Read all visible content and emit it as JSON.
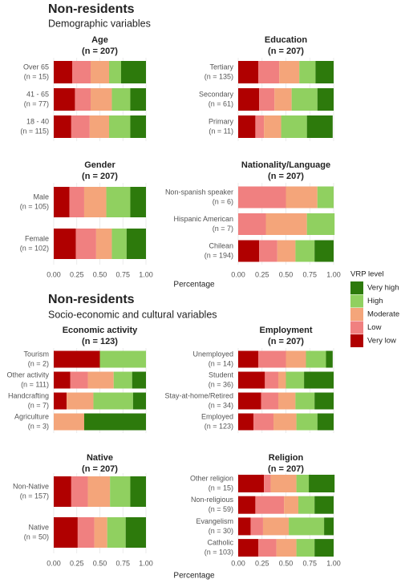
{
  "sections": [
    {
      "title": "Non-residents",
      "subtitle": "Demographic variables",
      "xlabel": "Percentage"
    },
    {
      "title": "Non-residents",
      "subtitle": "Socio-economic and cultural variables",
      "xlabel": "Percentage"
    }
  ],
  "legend_title": "VRP level",
  "chart_data": [
    {
      "type": "stacked_bar",
      "title": "Age",
      "subtitle": "(n = 207)",
      "categories": [
        "Over 65",
        "41 - 65",
        "18 - 40"
      ],
      "category_notes": [
        "(n = 15)",
        "(n = 77)",
        "(n = 115)"
      ],
      "xlim": [
        0,
        1
      ],
      "series": [
        {
          "name": "Very low",
          "color": "#b00000",
          "values": [
            0.2,
            0.23,
            0.19
          ]
        },
        {
          "name": "Low",
          "color": "#f08080",
          "values": [
            0.2,
            0.17,
            0.2
          ]
        },
        {
          "name": "Moderate",
          "color": "#f4a57a",
          "values": [
            0.2,
            0.23,
            0.21
          ]
        },
        {
          "name": "High",
          "color": "#90d060",
          "values": [
            0.13,
            0.2,
            0.23
          ]
        },
        {
          "name": "Very high",
          "color": "#2d7a0c",
          "values": [
            0.27,
            0.17,
            0.17
          ]
        }
      ]
    },
    {
      "type": "stacked_bar",
      "title": "Education",
      "subtitle": "(n = 207)",
      "categories": [
        "Tertiary",
        "Secondary",
        "Primary"
      ],
      "category_notes": [
        "(n = 135)",
        "(n = 61)",
        "(n = 11)"
      ],
      "xlim": [
        0,
        1
      ],
      "series": [
        {
          "name": "Very low",
          "color": "#b00000",
          "values": [
            0.21,
            0.22,
            0.18
          ]
        },
        {
          "name": "Low",
          "color": "#f08080",
          "values": [
            0.22,
            0.16,
            0.09
          ]
        },
        {
          "name": "Moderate",
          "color": "#f4a57a",
          "values": [
            0.21,
            0.18,
            0.18
          ]
        },
        {
          "name": "High",
          "color": "#90d060",
          "values": [
            0.17,
            0.27,
            0.27
          ]
        },
        {
          "name": "Very high",
          "color": "#2d7a0c",
          "values": [
            0.19,
            0.17,
            0.27
          ]
        }
      ]
    },
    {
      "type": "stacked_bar",
      "title": "Gender",
      "subtitle": "(n = 207)",
      "categories": [
        "Male",
        "Female"
      ],
      "category_notes": [
        "(n = 105)",
        "(n = 102)"
      ],
      "xlim": [
        0,
        1
      ],
      "xticks": [
        {
          "value": 0,
          "label": "0.00"
        },
        {
          "value": 0.25,
          "label": "0.25"
        },
        {
          "value": 0.5,
          "label": "0.50"
        },
        {
          "value": 0.75,
          "label": "0.75"
        },
        {
          "value": 1,
          "label": "1.00"
        }
      ],
      "series": [
        {
          "name": "Very low",
          "color": "#b00000",
          "values": [
            0.17,
            0.24
          ]
        },
        {
          "name": "Low",
          "color": "#f08080",
          "values": [
            0.16,
            0.22
          ]
        },
        {
          "name": "Moderate",
          "color": "#f4a57a",
          "values": [
            0.24,
            0.17
          ]
        },
        {
          "name": "High",
          "color": "#90d060",
          "values": [
            0.26,
            0.16
          ]
        },
        {
          "name": "Very high",
          "color": "#2d7a0c",
          "values": [
            0.17,
            0.21
          ]
        }
      ]
    },
    {
      "type": "stacked_bar",
      "title": "Nationality/Language",
      "subtitle": "(n = 207)",
      "categories": [
        "Non-spanish speaker",
        "Hispanic American",
        "Chilean"
      ],
      "category_notes": [
        "(n = 6)",
        "(n = 7)",
        "(n = 194)"
      ],
      "xlim": [
        0,
        1
      ],
      "xticks": [
        {
          "value": 0,
          "label": "0.00"
        },
        {
          "value": 0.25,
          "label": "0.25"
        },
        {
          "value": 0.5,
          "label": "0.50"
        },
        {
          "value": 0.75,
          "label": "0.75"
        },
        {
          "value": 1,
          "label": "1.00"
        }
      ],
      "series": [
        {
          "name": "Very low",
          "color": "#b00000",
          "values": [
            0,
            0,
            0.22
          ]
        },
        {
          "name": "Low",
          "color": "#f08080",
          "values": [
            0.5,
            0.29,
            0.19
          ]
        },
        {
          "name": "Moderate",
          "color": "#f4a57a",
          "values": [
            0.33,
            0.43,
            0.19
          ]
        },
        {
          "name": "High",
          "color": "#90d060",
          "values": [
            0.17,
            0.29,
            0.2
          ]
        },
        {
          "name": "Very high",
          "color": "#2d7a0c",
          "values": [
            0,
            0,
            0.2
          ]
        }
      ]
    },
    {
      "type": "stacked_bar",
      "title": "Economic activity",
      "subtitle": "(n = 123)",
      "categories": [
        "Tourism",
        "Other activity",
        "Handcrafting",
        "Agriculture"
      ],
      "category_notes": [
        "(n = 2)",
        "(n = 111)",
        "(n = 7)",
        "(n = 3)"
      ],
      "xlim": [
        0,
        1
      ],
      "series": [
        {
          "name": "Very low",
          "color": "#b00000",
          "values": [
            0.5,
            0.18,
            0.14,
            0
          ]
        },
        {
          "name": "Low",
          "color": "#f08080",
          "values": [
            0,
            0.19,
            0,
            0
          ]
        },
        {
          "name": "Moderate",
          "color": "#f4a57a",
          "values": [
            0,
            0.28,
            0.29,
            0.33
          ]
        },
        {
          "name": "High",
          "color": "#90d060",
          "values": [
            0.5,
            0.2,
            0.43,
            0
          ]
        },
        {
          "name": "Very high",
          "color": "#2d7a0c",
          "values": [
            0,
            0.15,
            0.14,
            0.67
          ]
        }
      ]
    },
    {
      "type": "stacked_bar",
      "title": "Employment",
      "subtitle": "(n = 207)",
      "categories": [
        "Unemployed",
        "Student",
        "Stay-at-home/Retired",
        "Employed"
      ],
      "category_notes": [
        "(n = 14)",
        "(n = 36)",
        "(n = 34)",
        "(n = 123)"
      ],
      "xlim": [
        0,
        1
      ],
      "series": [
        {
          "name": "Very low",
          "color": "#b00000",
          "values": [
            0.21,
            0.28,
            0.24,
            0.16
          ]
        },
        {
          "name": "Low",
          "color": "#f08080",
          "values": [
            0.29,
            0.14,
            0.18,
            0.21
          ]
        },
        {
          "name": "Moderate",
          "color": "#f4a57a",
          "values": [
            0.21,
            0.08,
            0.18,
            0.24
          ]
        },
        {
          "name": "High",
          "color": "#90d060",
          "values": [
            0.21,
            0.19,
            0.2,
            0.22
          ]
        },
        {
          "name": "Very high",
          "color": "#2d7a0c",
          "values": [
            0.07,
            0.31,
            0.2,
            0.17
          ]
        }
      ]
    },
    {
      "type": "stacked_bar",
      "title": "Native",
      "subtitle": "(n = 207)",
      "categories": [
        "Non-Native",
        "Native"
      ],
      "category_notes": [
        "(n = 157)",
        "(n = 50)"
      ],
      "xlim": [
        0,
        1
      ],
      "xticks": [
        {
          "value": 0,
          "label": "0.00"
        },
        {
          "value": 0.25,
          "label": "0.25"
        },
        {
          "value": 0.5,
          "label": "0.50"
        },
        {
          "value": 0.75,
          "label": "0.75"
        },
        {
          "value": 1,
          "label": "1.00"
        }
      ],
      "series": [
        {
          "name": "Very low",
          "color": "#b00000",
          "values": [
            0.19,
            0.26
          ]
        },
        {
          "name": "Low",
          "color": "#f08080",
          "values": [
            0.18,
            0.18
          ]
        },
        {
          "name": "Moderate",
          "color": "#f4a57a",
          "values": [
            0.24,
            0.14
          ]
        },
        {
          "name": "High",
          "color": "#90d060",
          "values": [
            0.22,
            0.2
          ]
        },
        {
          "name": "Very high",
          "color": "#2d7a0c",
          "values": [
            0.17,
            0.22
          ]
        }
      ]
    },
    {
      "type": "stacked_bar",
      "title": "Religion",
      "subtitle": "(n = 207)",
      "categories": [
        "Other religion",
        "Non-religious",
        "Evangelism",
        "Catholic"
      ],
      "category_notes": [
        "(n = 15)",
        "(n = 59)",
        "(n = 30)",
        "(n = 103)"
      ],
      "xlim": [
        0,
        1
      ],
      "xticks": [
        {
          "value": 0,
          "label": "0.00"
        },
        {
          "value": 0.25,
          "label": "0.25"
        },
        {
          "value": 0.5,
          "label": "0.50"
        },
        {
          "value": 0.75,
          "label": "0.75"
        },
        {
          "value": 1,
          "label": "1.00"
        }
      ],
      "series": [
        {
          "name": "Very low",
          "color": "#b00000",
          "values": [
            0.27,
            0.18,
            0.13,
            0.21
          ]
        },
        {
          "name": "Low",
          "color": "#f08080",
          "values": [
            0.07,
            0.3,
            0.13,
            0.19
          ]
        },
        {
          "name": "Moderate",
          "color": "#f4a57a",
          "values": [
            0.27,
            0.15,
            0.27,
            0.21
          ]
        },
        {
          "name": "High",
          "color": "#90d060",
          "values": [
            0.13,
            0.17,
            0.37,
            0.19
          ]
        },
        {
          "name": "Very high",
          "color": "#2d7a0c",
          "values": [
            0.27,
            0.2,
            0.1,
            0.2
          ]
        }
      ]
    }
  ]
}
